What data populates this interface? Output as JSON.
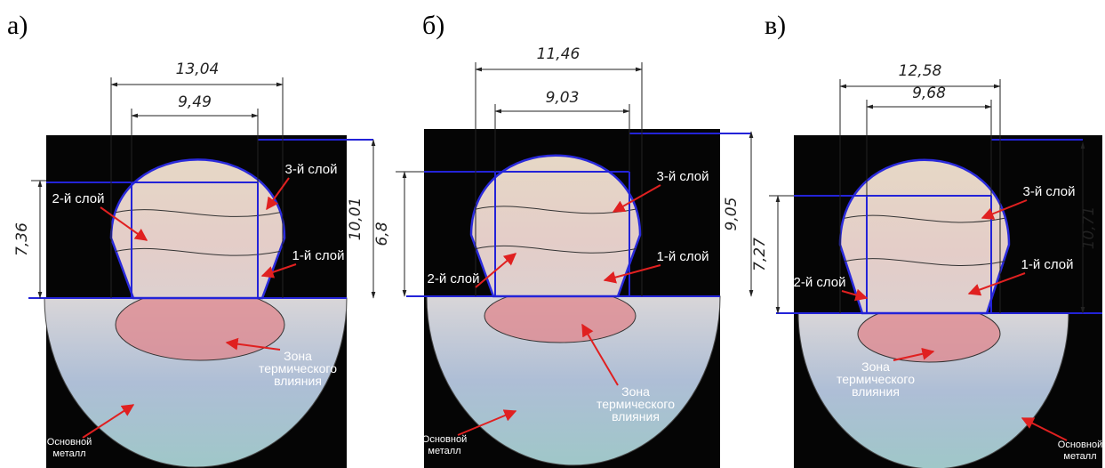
{
  "panels": [
    {
      "label": "а)",
      "dims": {
        "outer_width": "13,04",
        "inner_width": "9,49",
        "total_height": "10,01",
        "layer_height": "7,36"
      },
      "layers": {
        "third": "3-й слой",
        "second": "2-й слой",
        "first": "1-й слой"
      },
      "haz": [
        "Зона",
        "термического",
        "влияния"
      ],
      "base": [
        "Основной",
        "металл"
      ]
    },
    {
      "label": "б)",
      "dims": {
        "outer_width": "11,46",
        "inner_width": "9,03",
        "total_height": "9,05",
        "layer_height": "6,8"
      },
      "layers": {
        "third": "3-й слой",
        "second": "2-й слой",
        "first": "1-й слой"
      },
      "haz": [
        "Зона",
        "термического",
        "влияния"
      ],
      "base": [
        "Основной",
        "металл"
      ]
    },
    {
      "label": "в)",
      "dims": {
        "outer_width": "12,58",
        "inner_width": "9,68",
        "total_height": "10,71",
        "layer_height": "7,27"
      },
      "layers": {
        "third": "3-й слой",
        "second": "2-й слой",
        "first": "1-й слой"
      },
      "haz": [
        "Зона",
        "термического",
        "влияния"
      ],
      "base": [
        "Основной",
        "металл"
      ]
    }
  ]
}
